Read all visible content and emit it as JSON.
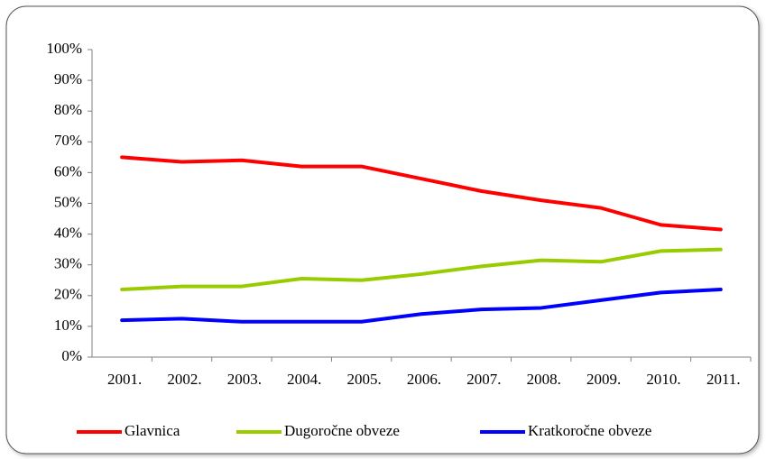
{
  "chart_data": {
    "type": "line",
    "categories": [
      "2001.",
      "2002.",
      "2003.",
      "2004.",
      "2005.",
      "2006.",
      "2007.",
      "2008.",
      "2009.",
      "2010.",
      "2011."
    ],
    "series": [
      {
        "name": "Glavnica",
        "color": "#ff0000",
        "values": [
          65,
          63.5,
          64,
          62,
          62,
          58,
          54,
          51,
          48.5,
          43,
          41.5
        ]
      },
      {
        "name": "Dugoročne obveze",
        "color": "#99cc00",
        "values": [
          22,
          23,
          23,
          25.5,
          25,
          27,
          29.5,
          31.5,
          31,
          34.5,
          35
        ]
      },
      {
        "name": "Kratkoročne obveze",
        "color": "#0000ff",
        "values": [
          12,
          12.5,
          11.5,
          11.5,
          11.5,
          14,
          15.5,
          16,
          18.5,
          21,
          22
        ]
      }
    ],
    "ylim": [
      0,
      100
    ],
    "yticks": [
      {
        "value": 0,
        "label": "0%"
      },
      {
        "value": 10,
        "label": "10%"
      },
      {
        "value": 20,
        "label": "20%"
      },
      {
        "value": 30,
        "label": "30%"
      },
      {
        "value": 40,
        "label": "40%"
      },
      {
        "value": 50,
        "label": "50%"
      },
      {
        "value": 60,
        "label": "60%"
      },
      {
        "value": 70,
        "label": "70%"
      },
      {
        "value": 80,
        "label": "80%"
      },
      {
        "value": 90,
        "label": "90%"
      },
      {
        "value": 100,
        "label": "100%"
      }
    ],
    "legend": "bottom"
  }
}
